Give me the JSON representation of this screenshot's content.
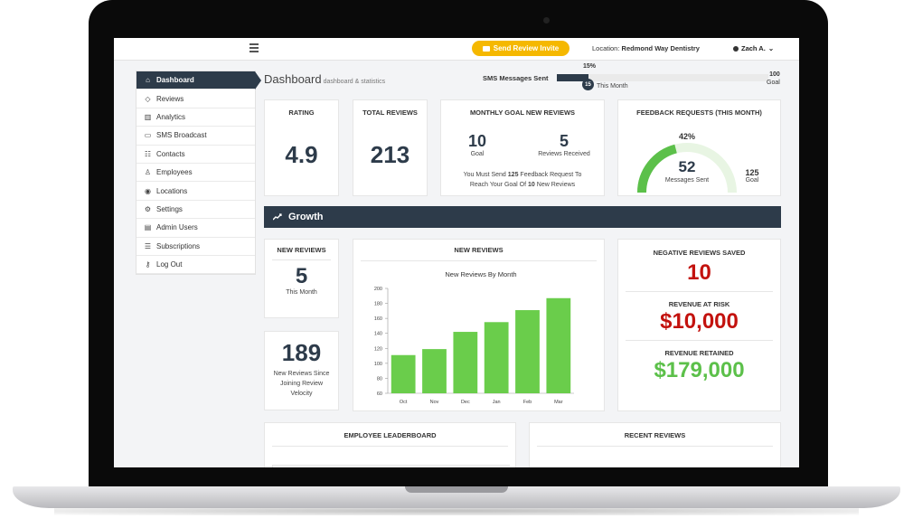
{
  "topbar": {
    "invite_label": "Send Review Invite",
    "location_label": "Location:",
    "location_value": "Redmond Way Dentistry",
    "user_name": "Zach A."
  },
  "sidebar": {
    "items": [
      {
        "label": "Dashboard",
        "icon": "home-icon",
        "glyph": "⌂",
        "active": true
      },
      {
        "label": "Reviews",
        "icon": "gem-icon",
        "glyph": "◇"
      },
      {
        "label": "Analytics",
        "icon": "bar-chart-icon",
        "glyph": "▥"
      },
      {
        "label": "SMS Broadcast",
        "icon": "message-icon",
        "glyph": "▭"
      },
      {
        "label": "Contacts",
        "icon": "contacts-icon",
        "glyph": "☷"
      },
      {
        "label": "Employees",
        "icon": "user-icon",
        "glyph": "♙"
      },
      {
        "label": "Locations",
        "icon": "map-pin-icon",
        "glyph": "◉"
      },
      {
        "label": "Settings",
        "icon": "gear-icon",
        "glyph": "⚙"
      },
      {
        "label": "Admin Users",
        "icon": "keyboard-icon",
        "glyph": "▤"
      },
      {
        "label": "Subscriptions",
        "icon": "list-icon",
        "glyph": "☰"
      },
      {
        "label": "Log Out",
        "icon": "key-icon",
        "glyph": "⚷"
      }
    ]
  },
  "page": {
    "title": "Dashboard",
    "subtitle": "dashboard & statistics"
  },
  "sms": {
    "label": "SMS Messages Sent",
    "percent_label": "15%",
    "fraction": 0.15,
    "sent": "15",
    "sent_caption": "This Month",
    "max": "100",
    "max_caption": "Goal"
  },
  "stats": {
    "rating_title": "RATING",
    "rating_value": "4.9",
    "total_title": "TOTAL REVIEWS",
    "total_value": "213",
    "monthly_title": "MONTHLY GOAL NEW REVIEWS",
    "goal_value": "10",
    "goal_caption": "Goal",
    "received_value": "5",
    "received_caption": "Reviews Received",
    "msg_pre": "You Must Send",
    "msg_num1": "125",
    "msg_mid": "Feedback Request To",
    "msg_line2_pre": "Reach Your Goal Of",
    "msg_num2": "10",
    "msg_end": "New Reviews",
    "feedback_title": "FEEDBACK REQUESTS (THIS MONTH)",
    "gauge_percent": "42%",
    "gauge_fraction": 0.42,
    "gauge_value": "52",
    "gauge_caption": "Messages Sent",
    "gauge_goal": "125",
    "gauge_goal_caption": "Goal"
  },
  "growth": {
    "title": "Growth",
    "new_reviews_title": "NEW REVIEWS",
    "new_reviews_value": "5",
    "new_reviews_caption": "This Month",
    "since_value": "189",
    "since_caption_1": "New Reviews Since",
    "since_caption_2": "Joining Review",
    "since_caption_3": "Velocity",
    "chart_card_title": "NEW REVIEWS",
    "negative_title": "NEGATIVE REVIEWS SAVED",
    "negative_value": "10",
    "risk_title": "REVENUE AT RISK",
    "risk_value": "$10,000",
    "retained_title": "REVENUE RETAINED",
    "retained_value": "$179,000"
  },
  "bottom": {
    "leaderboard_title": "EMPLOYEE LEADERBOARD",
    "recent_title": "RECENT REVIEWS"
  },
  "colors": {
    "navy": "#2d3b4a",
    "accent_yellow": "#f5b800",
    "bar_green": "#6acd4b",
    "red": "#c3120e",
    "gauge_green": "#5cc04a"
  },
  "chart_data": {
    "type": "bar",
    "title": "New Reviews By Month",
    "categories": [
      "Oct",
      "Nov",
      "Dec",
      "Jan",
      "Feb",
      "Mar"
    ],
    "values": [
      111,
      119,
      142,
      155,
      171,
      187
    ],
    "ylim": [
      60,
      200
    ],
    "yticks": [
      60,
      80,
      100,
      120,
      140,
      160,
      180,
      200
    ],
    "xlabel": "",
    "ylabel": "",
    "grid": false
  }
}
